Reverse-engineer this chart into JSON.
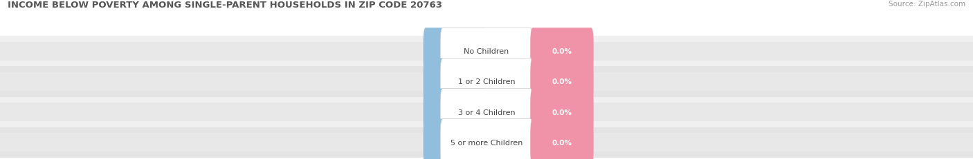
{
  "title": "INCOME BELOW POVERTY AMONG SINGLE-PARENT HOUSEHOLDS IN ZIP CODE 20763",
  "source": "Source: ZipAtlas.com",
  "categories": [
    "No Children",
    "1 or 2 Children",
    "3 or 4 Children",
    "5 or more Children"
  ],
  "single_father_values": [
    0.0,
    0.0,
    0.0,
    0.0
  ],
  "single_mother_values": [
    0.0,
    0.0,
    0.0,
    0.0
  ],
  "father_color": "#91bedd",
  "mother_color": "#f093a8",
  "bar_bg_color_light": "#e8e8e8",
  "row_colors": [
    "#f0f0f0",
    "#e4e4e4",
    "#f0f0f0",
    "#e4e4e4"
  ],
  "label_bg_color": "#ffffff",
  "bar_height": 0.62,
  "xlim_left": -100,
  "xlim_right": 100,
  "title_fontsize": 9.5,
  "source_fontsize": 7.5,
  "value_fontsize": 7.5,
  "cat_fontsize": 8,
  "tick_fontsize": 7.5,
  "legend_fontsize": 8,
  "background_color": "#ffffff",
  "tick_color": "#999999",
  "title_color": "#555555",
  "cat_text_color": "#444444",
  "value_text_color": "#ffffff"
}
